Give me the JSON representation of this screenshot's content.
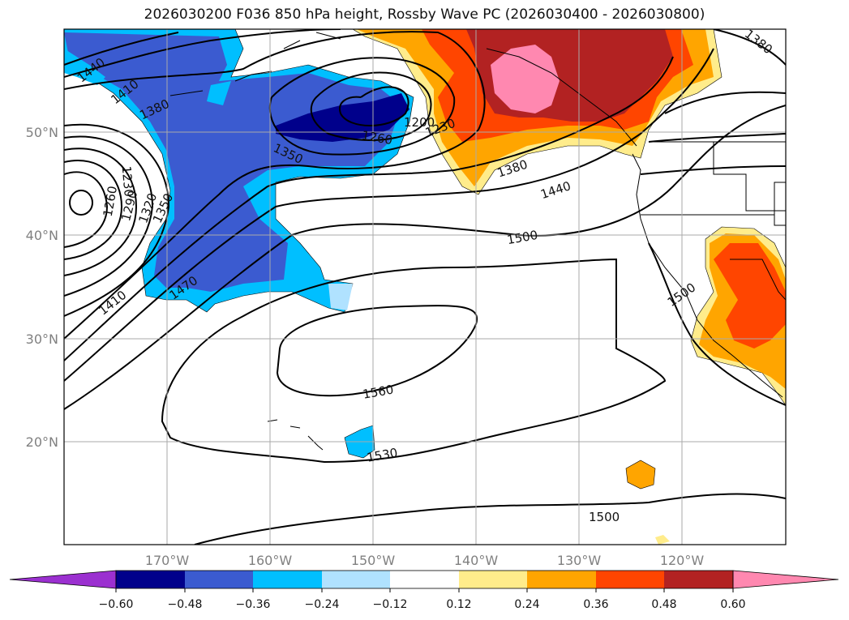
{
  "title": "2026030200 F036 850 hPa height, Rossby Wave PC (2026030400 - 2026030800)",
  "map": {
    "projection": "PlateCarree",
    "lon_range": [
      -180,
      -110
    ],
    "lat_range": [
      10,
      60
    ],
    "lat_ticks": [
      {
        "value": 50,
        "label": "50°N"
      },
      {
        "value": 40,
        "label": "40°N"
      },
      {
        "value": 30,
        "label": "30°N"
      },
      {
        "value": 20,
        "label": "20°N"
      }
    ],
    "lon_ticks": [
      {
        "value": -170,
        "label": "170°W"
      },
      {
        "value": -160,
        "label": "160°W"
      },
      {
        "value": -150,
        "label": "150°W"
      },
      {
        "value": -140,
        "label": "140°W"
      },
      {
        "value": -130,
        "label": "130°W"
      },
      {
        "value": -120,
        "label": "120°W"
      }
    ],
    "gridlines": true,
    "fill_field": "Rossby Wave PC",
    "contour_field": "850 hPa height",
    "contour_labels": [
      "1440",
      "1410",
      "1380",
      "1350",
      "1260",
      "1200",
      "1230",
      "1380",
      "1440",
      "1500",
      "1230",
      "1260",
      "1290",
      "1320",
      "1350",
      "1410",
      "1470",
      "1560",
      "1530",
      "1500",
      "1500",
      "1380"
    ]
  },
  "colorbar": {
    "orientation": "horizontal",
    "extend": "both",
    "colors": [
      "#9b30d0",
      "#00008b",
      "#3b5bd0",
      "#00bfff",
      "#b0e2ff",
      "#ffffff",
      "#ffec8b",
      "#ffa500",
      "#ff4500",
      "#b22222",
      "#ff88b0"
    ],
    "ticks": [
      "−0.60",
      "−0.48",
      "−0.36",
      "−0.24",
      "−0.12",
      "0.12",
      "0.24",
      "0.36",
      "0.48",
      "0.60"
    ]
  }
}
